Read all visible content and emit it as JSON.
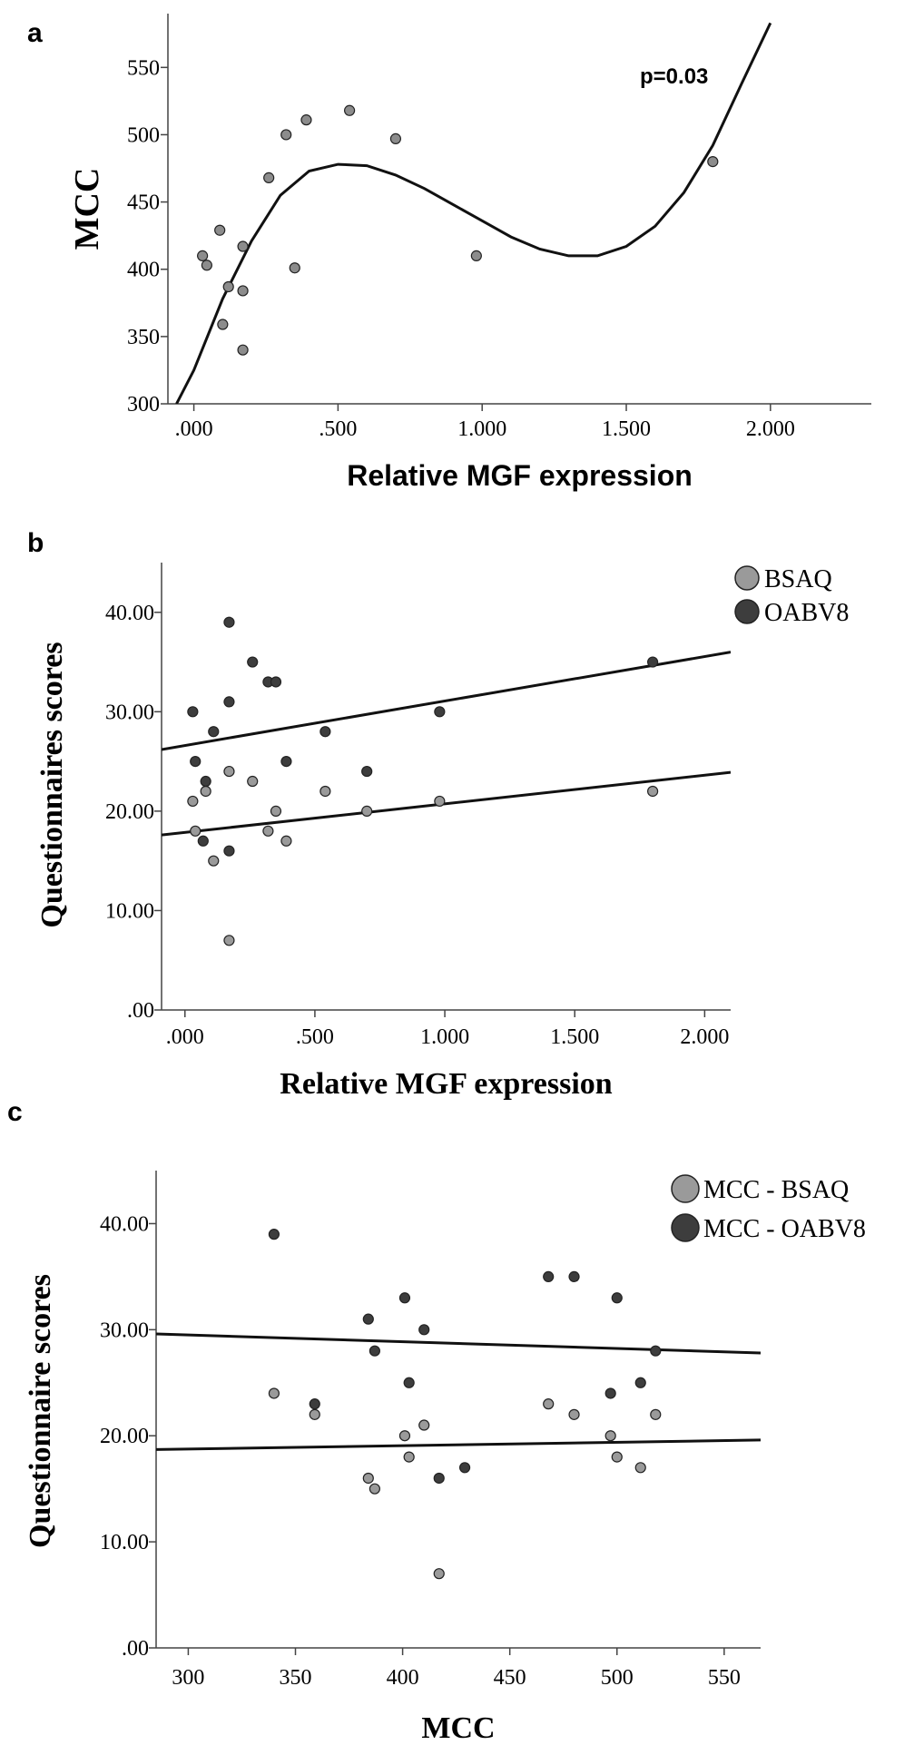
{
  "chart_data": [
    {
      "panel": "a",
      "type": "scatter",
      "xlabel": "Relative MGF expression",
      "ylabel": "MCC",
      "xlim": [
        -0.09,
        2.35
      ],
      "ylim": [
        300,
        590
      ],
      "x_ticks": [
        ".000",
        ".500",
        "1.000",
        "1.500",
        "2.000"
      ],
      "y_ticks": [
        "300",
        "350",
        "400",
        "450",
        "500",
        "550"
      ],
      "annotation": "p=0.03",
      "grid": false,
      "fit": "cubic",
      "series": [
        {
          "color": "#8c8c8c",
          "points": [
            [
              0.03,
              410
            ],
            [
              0.045,
              403
            ],
            [
              0.09,
              429
            ],
            [
              0.1,
              359
            ],
            [
              0.12,
              387
            ],
            [
              0.17,
              417
            ],
            [
              0.17,
              384
            ],
            [
              0.17,
              340
            ],
            [
              0.26,
              468
            ],
            [
              0.32,
              500
            ],
            [
              0.35,
              401
            ],
            [
              0.39,
              511
            ],
            [
              0.54,
              518
            ],
            [
              0.7,
              497
            ],
            [
              0.98,
              410
            ],
            [
              1.8,
              480
            ]
          ]
        }
      ],
      "fit_curve": [
        [
          -0.06,
          300
        ],
        [
          0.0,
          325
        ],
        [
          0.1,
          378
        ],
        [
          0.2,
          421
        ],
        [
          0.3,
          455
        ],
        [
          0.4,
          473
        ],
        [
          0.5,
          478
        ],
        [
          0.6,
          477
        ],
        [
          0.7,
          470
        ],
        [
          0.8,
          460
        ],
        [
          0.9,
          448
        ],
        [
          1.0,
          436
        ],
        [
          1.1,
          424
        ],
        [
          1.2,
          415
        ],
        [
          1.3,
          410
        ],
        [
          1.4,
          410
        ],
        [
          1.5,
          417
        ],
        [
          1.6,
          432
        ],
        [
          1.7,
          457
        ],
        [
          1.8,
          492
        ],
        [
          1.9,
          538
        ],
        [
          2.0,
          583
        ]
      ]
    },
    {
      "panel": "b",
      "type": "scatter",
      "xlabel": "Relative MGF expression",
      "ylabel": "Questionnaires scores",
      "xlim": [
        -0.09,
        2.1
      ],
      "ylim": [
        0,
        45
      ],
      "x_ticks": [
        ".000",
        ".500",
        "1.000",
        "1.500",
        "2.000"
      ],
      "y_ticks": [
        ".00",
        "10.00",
        "20.00",
        "30.00",
        "40.00"
      ],
      "legend_position": "top-right",
      "grid": false,
      "series": [
        {
          "name": "BSAQ",
          "color": "#9a9a9a",
          "points": [
            [
              0.03,
              21
            ],
            [
              0.08,
              22
            ],
            [
              0.11,
              15
            ],
            [
              0.17,
              24
            ],
            [
              0.26,
              23
            ],
            [
              0.17,
              7
            ],
            [
              0.32,
              18
            ],
            [
              0.35,
              20
            ],
            [
              0.39,
              17
            ],
            [
              0.54,
              22
            ],
            [
              0.7,
              20
            ],
            [
              0.98,
              21
            ],
            [
              1.8,
              22
            ],
            [
              0.04,
              18
            ]
          ],
          "fit_line": [
            [
              -0.09,
              17.6
            ],
            [
              2.1,
              23.9
            ]
          ]
        },
        {
          "name": "OABV8",
          "color": "#3d3d3d",
          "points": [
            [
              0.03,
              30
            ],
            [
              0.04,
              25
            ],
            [
              0.08,
              23
            ],
            [
              0.07,
              17
            ],
            [
              0.11,
              28
            ],
            [
              0.17,
              39
            ],
            [
              0.17,
              31
            ],
            [
              0.17,
              16
            ],
            [
              0.26,
              35
            ],
            [
              0.32,
              33
            ],
            [
              0.35,
              33
            ],
            [
              0.39,
              25
            ],
            [
              0.54,
              28
            ],
            [
              0.7,
              24
            ],
            [
              0.98,
              30
            ],
            [
              1.8,
              35
            ]
          ],
          "fit_line": [
            [
              -0.09,
              26.2
            ],
            [
              2.1,
              36.0
            ]
          ]
        }
      ]
    },
    {
      "panel": "c",
      "type": "scatter",
      "xlabel": "MCC",
      "ylabel": "Questionnaire scores",
      "xlim": [
        285,
        567
      ],
      "ylim": [
        0,
        45
      ],
      "x_ticks": [
        "300",
        "350",
        "400",
        "450",
        "500",
        "550"
      ],
      "y_ticks": [
        ".00",
        "10.00",
        "20.00",
        "30.00",
        "40.00"
      ],
      "legend_position": "top-right",
      "grid": false,
      "series": [
        {
          "name": "MCC - BSAQ",
          "color": "#9a9a9a",
          "points": [
            [
              340,
              24
            ],
            [
              359,
              22
            ],
            [
              384,
              16
            ],
            [
              387,
              15
            ],
            [
              401,
              20
            ],
            [
              403,
              18
            ],
            [
              410,
              21
            ],
            [
              417,
              7
            ],
            [
              468,
              23
            ],
            [
              480,
              22
            ],
            [
              497,
              20
            ],
            [
              500,
              18
            ],
            [
              511,
              17
            ],
            [
              518,
              22
            ]
          ],
          "fit_line": [
            [
              285,
              18.7
            ],
            [
              567,
              19.6
            ]
          ]
        },
        {
          "name": "MCC - OABV8",
          "color": "#3d3d3d",
          "points": [
            [
              340,
              39
            ],
            [
              359,
              23
            ],
            [
              384,
              31
            ],
            [
              387,
              28
            ],
            [
              401,
              33
            ],
            [
              403,
              25
            ],
            [
              410,
              30
            ],
            [
              417,
              16
            ],
            [
              429,
              17
            ],
            [
              468,
              35
            ],
            [
              480,
              35
            ],
            [
              497,
              24
            ],
            [
              500,
              33
            ],
            [
              511,
              25
            ],
            [
              518,
              28
            ]
          ],
          "fit_line": [
            [
              285,
              29.6
            ],
            [
              567,
              27.8
            ]
          ]
        }
      ]
    }
  ]
}
